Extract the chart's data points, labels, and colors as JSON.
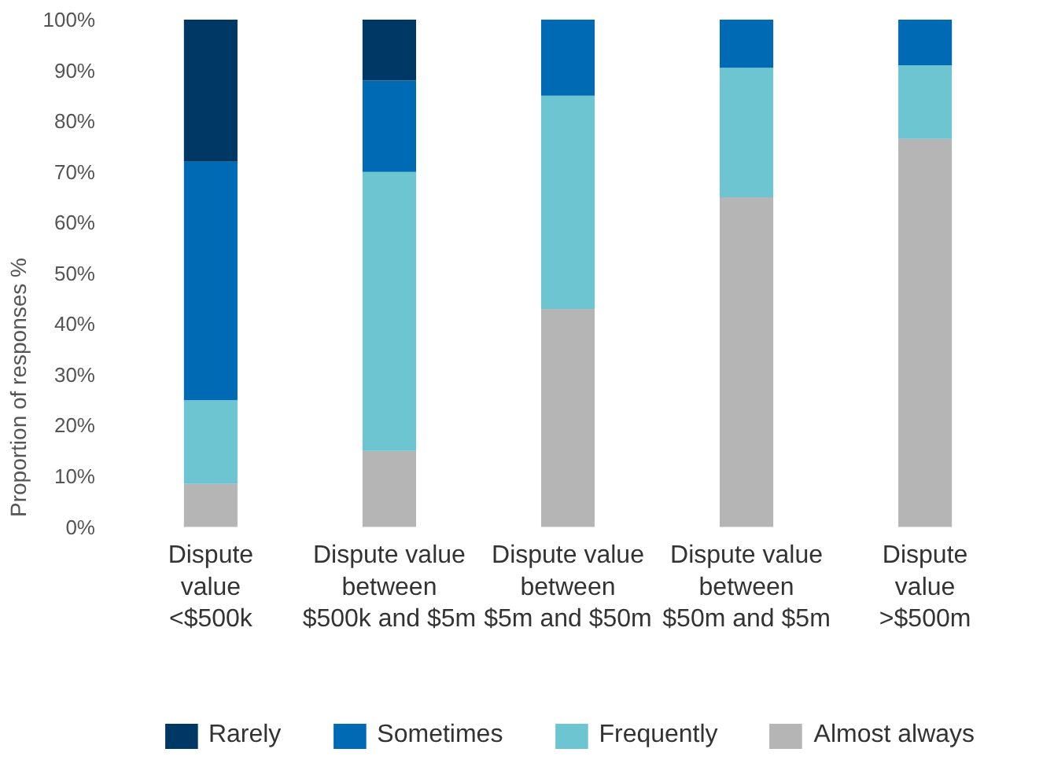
{
  "chart_data": {
    "type": "bar",
    "stacked": true,
    "ylabel": "Proportion of responses %",
    "categories": [
      "Dispute\nvalue\n<$500k",
      "Dispute value\nbetween\n$500k and $5m",
      "Dispute value\nbetween\n$5m and $50m",
      "Dispute value\nbetween\n$50m and $5m",
      "Dispute\nvalue\n>$500m"
    ],
    "series": [
      {
        "name": "Almost always",
        "color": "#b5b5b5",
        "values": [
          8.5,
          15,
          43,
          65,
          76.5
        ]
      },
      {
        "name": "Frequently",
        "color": "#6cc5d0",
        "values": [
          16.5,
          55,
          42,
          25.5,
          14.5
        ]
      },
      {
        "name": "Sometimes",
        "color": "#006ab4",
        "values": [
          47,
          18,
          15,
          9.5,
          9
        ]
      },
      {
        "name": "Rarely",
        "color": "#003865",
        "values": [
          28,
          12,
          0,
          0,
          0
        ]
      }
    ],
    "ylim": [
      0,
      100
    ],
    "yticks": [
      {
        "value": 0,
        "label": "0%"
      },
      {
        "value": 10,
        "label": "10%"
      },
      {
        "value": 20,
        "label": "20%"
      },
      {
        "value": 30,
        "label": "30%"
      },
      {
        "value": 40,
        "label": "40%"
      },
      {
        "value": 50,
        "label": "50%"
      },
      {
        "value": 60,
        "label": "60%"
      },
      {
        "value": 70,
        "label": "70%"
      },
      {
        "value": 80,
        "label": "80%"
      },
      {
        "value": 90,
        "label": "90%"
      },
      {
        "value": 100,
        "label": "100%"
      }
    ],
    "grid": false,
    "legend": "bottom"
  }
}
